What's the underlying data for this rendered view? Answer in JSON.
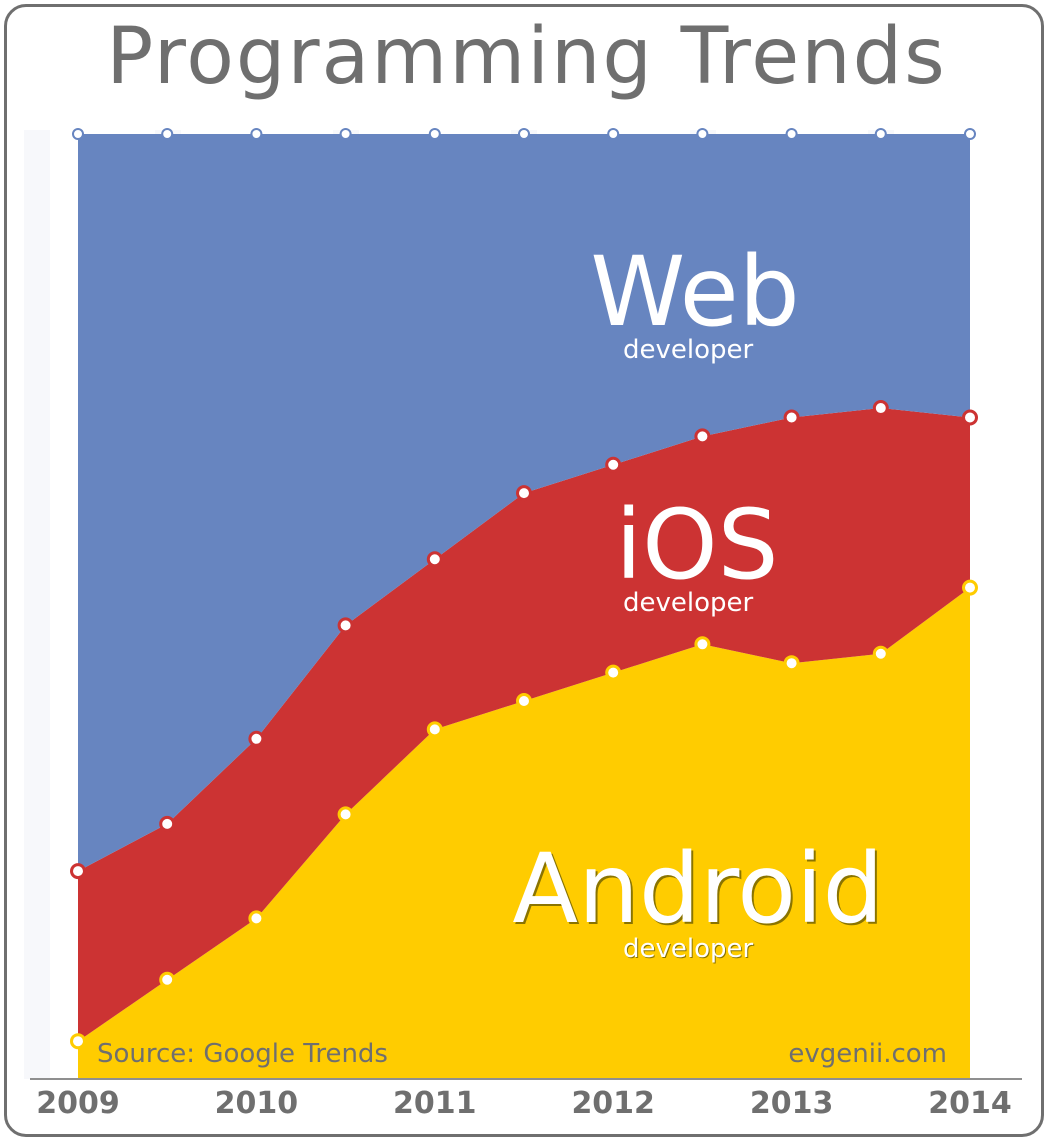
{
  "chart_data": {
    "type": "area",
    "stacked": true,
    "title": "Programming Trends",
    "x": [
      2009,
      2009.5,
      2010,
      2010.5,
      2011,
      2011.5,
      2012,
      2012.5,
      2013,
      2013.5,
      2014
    ],
    "xticks": [
      "2009",
      "2010",
      "2011",
      "2012",
      "2013",
      "2014"
    ],
    "ylim": [
      0,
      100
    ],
    "series": [
      {
        "name": "Android",
        "subtitle": "developer",
        "color": "#ffcc00",
        "boundary": [
          4,
          10.5,
          17,
          28,
          37,
          40,
          43,
          46,
          44,
          45,
          52
        ]
      },
      {
        "name": "iOS",
        "subtitle": "developer",
        "color": "#cc3333",
        "boundary": [
          22,
          27,
          36,
          48,
          55,
          62,
          65,
          68,
          70,
          71,
          70
        ]
      },
      {
        "name": "Web",
        "subtitle": "developer",
        "color": "#6785c0",
        "boundary": [
          100,
          100,
          100,
          100,
          100,
          100,
          100,
          100,
          100,
          100,
          100
        ]
      }
    ],
    "source": "Source: Google Trends",
    "credit": "evgenii.com",
    "grid": false,
    "legend": "labels inside areas"
  }
}
